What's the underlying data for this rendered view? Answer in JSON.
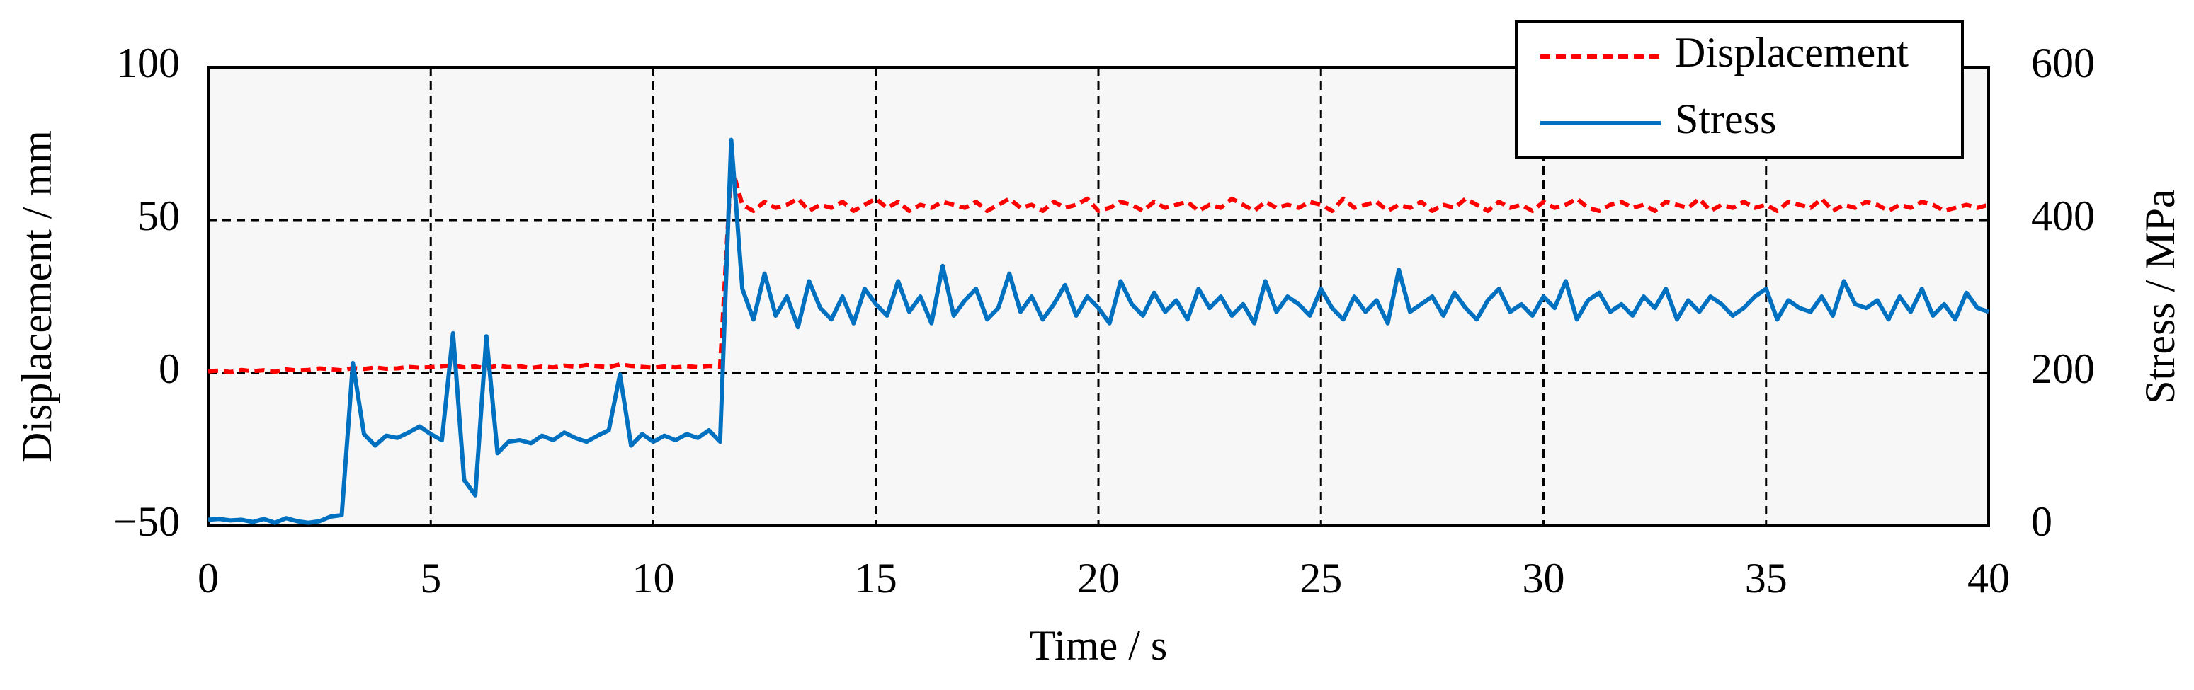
{
  "chart_data": {
    "type": "line",
    "xlabel": "Time / s",
    "ylabel": "Displacement / mm",
    "y2label": "Stress / MPa",
    "x": [
      0,
      0.25,
      0.5,
      0.75,
      1,
      1.25,
      1.5,
      1.75,
      2,
      2.25,
      2.5,
      2.75,
      3,
      3.25,
      3.5,
      3.75,
      4,
      4.25,
      4.5,
      4.75,
      5,
      5.25,
      5.5,
      5.75,
      6,
      6.25,
      6.5,
      6.75,
      7,
      7.25,
      7.5,
      7.75,
      8,
      8.25,
      8.5,
      8.75,
      9,
      9.25,
      9.5,
      9.75,
      10,
      10.25,
      10.5,
      10.75,
      11,
      11.25,
      11.5,
      11.75,
      12,
      12.25,
      12.5,
      12.75,
      13,
      13.25,
      13.5,
      13.75,
      14,
      14.25,
      14.5,
      14.75,
      15,
      15.25,
      15.5,
      15.75,
      16,
      16.25,
      16.5,
      16.75,
      17,
      17.25,
      17.5,
      17.75,
      18,
      18.25,
      18.5,
      18.75,
      19,
      19.25,
      19.5,
      19.75,
      20,
      20.25,
      20.5,
      20.75,
      21,
      21.25,
      21.5,
      21.75,
      22,
      22.25,
      22.5,
      22.75,
      23,
      23.25,
      23.5,
      23.75,
      24,
      24.25,
      24.5,
      24.75,
      25,
      25.25,
      25.5,
      25.75,
      26,
      26.25,
      26.5,
      26.75,
      27,
      27.25,
      27.5,
      27.75,
      28,
      28.25,
      28.5,
      28.75,
      29,
      29.25,
      29.5,
      29.75,
      30,
      30.25,
      30.5,
      30.75,
      31,
      31.25,
      31.5,
      31.75,
      32,
      32.25,
      32.5,
      32.75,
      33,
      33.25,
      33.5,
      33.75,
      34,
      34.25,
      34.5,
      34.75,
      35,
      35.25,
      35.5,
      35.75,
      36,
      36.25,
      36.5,
      36.75,
      37,
      37.25,
      37.5,
      37.75,
      38,
      38.25,
      38.5,
      38.75,
      39,
      39.25,
      39.5,
      39.75,
      40
    ],
    "series": [
      {
        "name": "Displacement",
        "color": "#ff0000",
        "dash": true,
        "values": [
          0.5,
          0.8,
          0.3,
          1,
          0.6,
          0.9,
          0.4,
          1.2,
          0.8,
          1,
          1.5,
          1.2,
          0.9,
          1.6,
          1.3,
          1.8,
          1.4,
          1.5,
          2,
          1.7,
          1.9,
          2.2,
          2.5,
          1.8,
          2.1,
          1.5,
          2.4,
          1.9,
          2.2,
          1.6,
          2.1,
          1.8,
          2.4,
          2,
          2.6,
          2.2,
          1.9,
          2.8,
          2.3,
          2,
          1.7,
          2.1,
          1.8,
          2.2,
          1.9,
          2.3,
          2,
          68,
          55,
          53,
          56,
          54,
          55,
          57,
          53,
          55,
          54,
          56,
          53,
          55,
          57,
          54,
          56,
          53,
          55,
          54,
          56,
          55,
          54,
          56,
          53,
          55,
          57,
          54,
          55,
          53,
          56,
          54,
          55,
          57,
          53,
          54,
          56,
          55,
          53,
          56,
          54,
          55,
          56,
          53,
          55,
          54,
          57,
          55,
          53,
          56,
          54,
          55,
          54,
          56,
          55,
          53,
          57,
          54,
          55,
          56,
          53,
          55,
          54,
          56,
          53,
          55,
          54,
          57,
          55,
          53,
          56,
          54,
          55,
          53,
          56,
          54,
          55,
          57,
          54,
          53,
          55,
          56,
          54,
          55,
          53,
          56,
          55,
          54,
          57,
          53,
          55,
          54,
          56,
          54,
          55,
          53,
          56,
          55,
          54,
          57,
          53,
          55,
          54,
          56,
          55,
          53,
          55,
          54,
          56,
          55,
          53,
          54,
          55,
          54,
          55
        ]
      },
      {
        "name": "Stress",
        "color": "#0070c0",
        "dash": false,
        "axis": "y2",
        "values": [
          8,
          9,
          7,
          8,
          5,
          9,
          4,
          10,
          6,
          4,
          6,
          12,
          14,
          213,
          120,
          105,
          118,
          115,
          122,
          130,
          120,
          112,
          252,
          60,
          40,
          248,
          95,
          110,
          112,
          108,
          118,
          112,
          122,
          115,
          110,
          118,
          125,
          198,
          105,
          120,
          110,
          118,
          112,
          120,
          115,
          125,
          110,
          505,
          310,
          270,
          330,
          275,
          300,
          260,
          320,
          285,
          270,
          300,
          265,
          310,
          290,
          275,
          320,
          280,
          300,
          265,
          340,
          275,
          295,
          310,
          270,
          285,
          330,
          280,
          300,
          270,
          290,
          315,
          275,
          300,
          285,
          265,
          320,
          290,
          275,
          305,
          280,
          295,
          270,
          310,
          285,
          300,
          275,
          290,
          265,
          320,
          280,
          300,
          290,
          275,
          310,
          285,
          270,
          300,
          280,
          295,
          265,
          335,
          280,
          290,
          300,
          275,
          305,
          285,
          270,
          295,
          310,
          280,
          290,
          275,
          300,
          285,
          320,
          270,
          295,
          305,
          280,
          290,
          275,
          300,
          285,
          310,
          270,
          295,
          280,
          300,
          290,
          275,
          285,
          300,
          310,
          270,
          295,
          285,
          280,
          300,
          275,
          320,
          290,
          285,
          295,
          270,
          300,
          280,
          310,
          275,
          290,
          270,
          305,
          285,
          280
        ]
      }
    ],
    "xlim": [
      0,
      40
    ],
    "xticks": [
      0,
      5,
      10,
      15,
      20,
      25,
      30,
      35,
      40
    ],
    "ylim": [
      -50,
      100
    ],
    "yticks": [
      {
        "value": -50,
        "label": "−50"
      },
      0,
      50,
      100
    ],
    "y2lim": [
      0,
      600
    ],
    "y2ticks": [
      0,
      200,
      400,
      600
    ],
    "grid": true,
    "legend": "upper right"
  }
}
